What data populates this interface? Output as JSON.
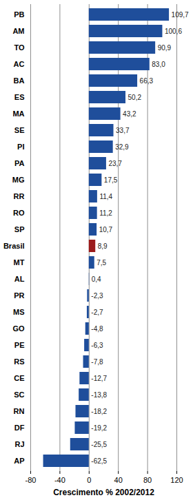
{
  "chart_data": {
    "type": "bar",
    "orientation": "horizontal",
    "x_label": "Crescimento % 2002/2012",
    "categories": [
      "PB",
      "AM",
      "TO",
      "AC",
      "BA",
      "ES",
      "MA",
      "SE",
      "PI",
      "PA",
      "MG",
      "RR",
      "RO",
      "SP",
      "Brasil",
      "MT",
      "AL",
      "PR",
      "MS",
      "GO",
      "PE",
      "RS",
      "CE",
      "SC",
      "RN",
      "DF",
      "RJ",
      "AP"
    ],
    "values": [
      109.7,
      100.6,
      90.9,
      83.0,
      66.3,
      50.2,
      43.2,
      33.7,
      32.9,
      23.7,
      17.5,
      11.4,
      11.2,
      10.7,
      8.9,
      7.5,
      0.4,
      -2.3,
      -2.7,
      -4.8,
      -6.3,
      -7.8,
      -12.7,
      -13.8,
      -18.2,
      -19.2,
      -25.5,
      -62.5
    ],
    "value_labels": [
      "109,7",
      "100,6",
      "90,9",
      "83,0",
      "66,3",
      "50,2",
      "43,2",
      "33,7",
      "32,9",
      "23,7",
      "17,5",
      "11,4",
      "11,2",
      "10,7",
      "8,9",
      "7,5",
      "0,4",
      "-2,3",
      "-2,7",
      "-4,8",
      "-6,3",
      "-7,8",
      "-12,7",
      "-13,8",
      "-18,2",
      "-19,2",
      "-25,5",
      "-62,5"
    ],
    "colors": [
      "#1f4e9b",
      "#1f4e9b",
      "#1f4e9b",
      "#1f4e9b",
      "#1f4e9b",
      "#1f4e9b",
      "#1f4e9b",
      "#1f4e9b",
      "#1f4e9b",
      "#1f4e9b",
      "#1f4e9b",
      "#1f4e9b",
      "#1f4e9b",
      "#1f4e9b",
      "#9b1b1b",
      "#1f4e9b",
      "#1f4e9b",
      "#1f4e9b",
      "#1f4e9b",
      "#1f4e9b",
      "#1f4e9b",
      "#1f4e9b",
      "#1f4e9b",
      "#1f4e9b",
      "#1f4e9b",
      "#1f4e9b",
      "#1f4e9b",
      "#1f4e9b"
    ],
    "xlim": [
      -80,
      120
    ],
    "xticks": [
      -80,
      -40,
      0,
      40,
      80,
      120
    ],
    "grid": true,
    "data_labels": true
  }
}
